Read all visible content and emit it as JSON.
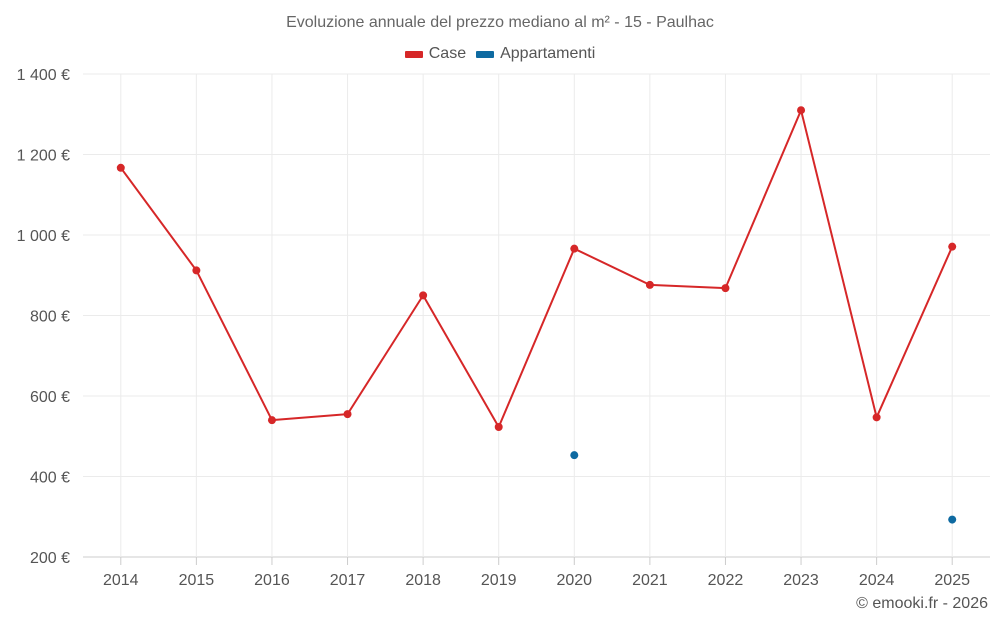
{
  "chart_data": {
    "type": "line",
    "title": "Evoluzione annuale del prezzo mediano al m² - 15 - Paulhac",
    "xlabel": "",
    "ylabel": "",
    "categories": [
      "2014",
      "2015",
      "2016",
      "2017",
      "2018",
      "2019",
      "2020",
      "2021",
      "2022",
      "2023",
      "2024",
      "2025"
    ],
    "ylim": [
      200,
      1400
    ],
    "yticks": [
      200,
      400,
      600,
      800,
      1000,
      1200,
      1400
    ],
    "ytick_labels": [
      "200 €",
      "400 €",
      "600 €",
      "800 €",
      "1 000 €",
      "1 200 €",
      "1 400 €"
    ],
    "grid": true,
    "legend_position": "top-center",
    "series": [
      {
        "name": "Case",
        "color": "#d62728",
        "values": [
          1167,
          912,
          540,
          555,
          850,
          523,
          966,
          876,
          868,
          1310,
          547,
          971
        ]
      },
      {
        "name": "Appartamenti",
        "color": "#0e6aa1",
        "values": [
          null,
          null,
          null,
          null,
          null,
          null,
          453,
          null,
          null,
          null,
          null,
          293
        ]
      }
    ]
  },
  "credit": "© emooki.fr - 2026"
}
